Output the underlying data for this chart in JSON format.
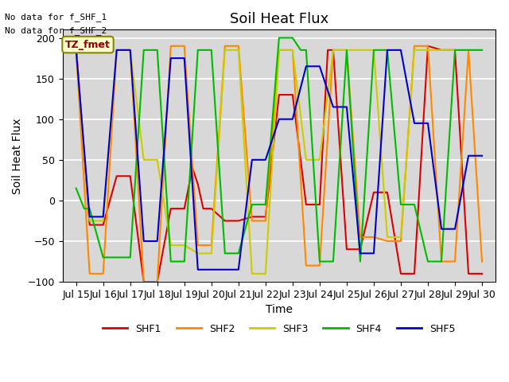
{
  "title": "Soil Heat Flux",
  "xlabel": "Time",
  "ylabel": "Soil Heat Flux",
  "ylim": [
    -100,
    210
  ],
  "yticks": [
    -100,
    -50,
    0,
    50,
    100,
    150,
    200
  ],
  "background_color": "#d8d8d8",
  "text_lines": [
    "No data for f_SHF_1",
    "No data for f_SHF_2"
  ],
  "annotation_box": "TZ_fmet",
  "legend_entries": [
    "SHF1",
    "SHF2",
    "SHF3",
    "SHF4",
    "SHF5"
  ],
  "colors": {
    "SHF1": "#dd0000",
    "SHF2": "#ff8800",
    "SHF3": "#cccc00",
    "SHF4": "#00bb00",
    "SHF5": "#0000cc"
  },
  "SHF1_x": [
    15.0,
    15.5,
    16.0,
    16.5,
    17.0,
    17.5,
    18.0,
    18.5,
    19.0,
    19.3,
    19.5,
    19.7,
    20.0,
    20.5,
    21.0,
    21.5,
    22.0,
    22.5,
    23.0,
    23.5,
    24.0,
    24.3,
    24.5,
    25.0,
    25.5,
    26.0,
    26.5,
    27.0,
    27.5,
    28.0,
    28.5,
    29.0,
    29.5,
    30.0
  ],
  "SHF1_y": [
    190,
    -30,
    -30,
    30,
    30,
    -100,
    -100,
    -10,
    -10,
    40,
    20,
    -10,
    -10,
    -25,
    -25,
    -20,
    -20,
    130,
    130,
    -5,
    -5,
    185,
    185,
    -60,
    -60,
    10,
    10,
    -90,
    -90,
    190,
    185,
    185,
    -90,
    -90
  ],
  "SHF2_x": [
    15.0,
    15.5,
    16.0,
    16.5,
    17.0,
    17.5,
    18.0,
    18.5,
    19.0,
    19.5,
    20.0,
    20.5,
    21.0,
    21.5,
    22.0,
    22.5,
    23.0,
    23.5,
    24.0,
    24.5,
    25.0,
    25.5,
    26.0,
    26.5,
    27.0,
    27.5,
    28.0,
    28.5,
    29.0,
    29.5,
    30.0
  ],
  "SHF2_y": [
    185,
    -90,
    -90,
    185,
    185,
    -100,
    -100,
    190,
    190,
    -55,
    -55,
    190,
    190,
    -25,
    -25,
    185,
    185,
    -80,
    -80,
    185,
    185,
    -45,
    -45,
    -50,
    -50,
    190,
    190,
    -75,
    -75,
    185,
    -75
  ],
  "SHF3_x": [
    15.0,
    15.5,
    16.0,
    16.5,
    17.0,
    17.5,
    18.0,
    18.5,
    19.0,
    19.5,
    20.0,
    20.5,
    21.0,
    21.5,
    22.0,
    22.5,
    23.0,
    23.5,
    24.0,
    24.5,
    25.0,
    25.5,
    26.0,
    26.5,
    27.0,
    27.5,
    28.0,
    28.5,
    29.0,
    29.5,
    30.0
  ],
  "SHF3_y": [
    185,
    -25,
    -25,
    185,
    185,
    50,
    50,
    -55,
    -55,
    -65,
    -65,
    185,
    185,
    -90,
    -90,
    185,
    185,
    50,
    50,
    185,
    185,
    185,
    185,
    -45,
    -45,
    185,
    185,
    185,
    185,
    185,
    185
  ],
  "SHF4_x": [
    15.0,
    15.3,
    15.5,
    16.0,
    16.5,
    17.0,
    17.5,
    18.0,
    18.5,
    19.0,
    19.5,
    20.0,
    20.5,
    21.0,
    21.5,
    22.0,
    22.5,
    23.0,
    23.3,
    23.5,
    24.0,
    24.5,
    25.0,
    25.5,
    26.0,
    26.5,
    27.0,
    27.5,
    28.0,
    28.5,
    29.0,
    29.5,
    30.0
  ],
  "SHF4_y": [
    15,
    -10,
    -10,
    -70,
    -70,
    -70,
    185,
    185,
    -75,
    -75,
    185,
    185,
    -65,
    -65,
    -5,
    -5,
    200,
    200,
    185,
    185,
    -75,
    -75,
    185,
    -75,
    185,
    185,
    -5,
    -5,
    -75,
    -75,
    185,
    185,
    185
  ],
  "SHF5_x": [
    15.0,
    15.5,
    16.0,
    16.5,
    17.0,
    17.5,
    18.0,
    18.5,
    19.0,
    19.5,
    20.0,
    20.5,
    21.0,
    21.5,
    22.0,
    22.5,
    23.0,
    23.5,
    24.0,
    24.5,
    25.0,
    25.5,
    26.0,
    26.5,
    27.0,
    27.5,
    28.0,
    28.5,
    29.0,
    29.5,
    30.0
  ],
  "SHF5_y": [
    185,
    -20,
    -20,
    185,
    185,
    -50,
    -50,
    175,
    175,
    -85,
    -85,
    -85,
    -85,
    50,
    50,
    100,
    100,
    165,
    165,
    115,
    115,
    -65,
    -65,
    185,
    185,
    95,
    95,
    -35,
    -35,
    55,
    55
  ]
}
